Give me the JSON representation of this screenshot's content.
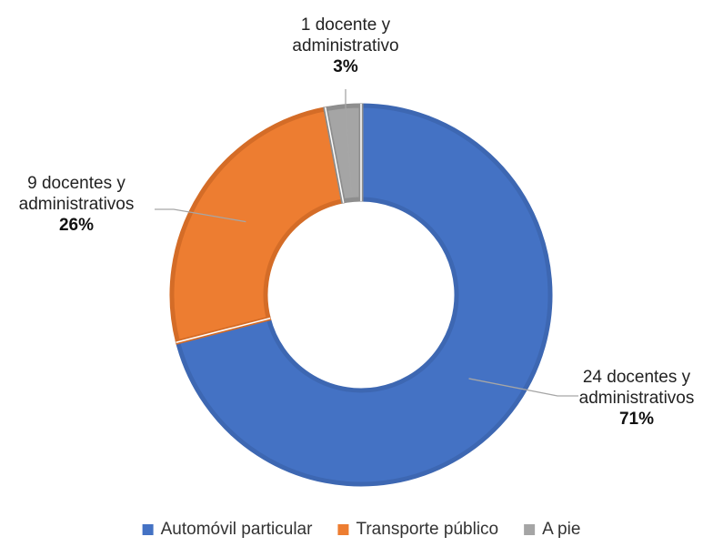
{
  "chart_data": {
    "type": "pie",
    "donut": true,
    "legend_position": "bottom",
    "slices": [
      {
        "name": "Automóvil particular",
        "value": 71,
        "label_lines": [
          "24 docentes y",
          "administrativos"
        ],
        "percent_label": "71%",
        "color": "#4472C4",
        "edge_color": "#3D67B2"
      },
      {
        "name": "Transporte público",
        "value": 26,
        "label_lines": [
          "9 docentes y",
          "administrativos"
        ],
        "percent_label": "26%",
        "color": "#ED7D31",
        "edge_color": "#D46C27"
      },
      {
        "name": "A pie",
        "value": 3,
        "label_lines": [
          "1 docente y",
          "administrativo"
        ],
        "percent_label": "3%",
        "color": "#A5A5A5",
        "edge_color": "#8E8E8E"
      }
    ]
  }
}
